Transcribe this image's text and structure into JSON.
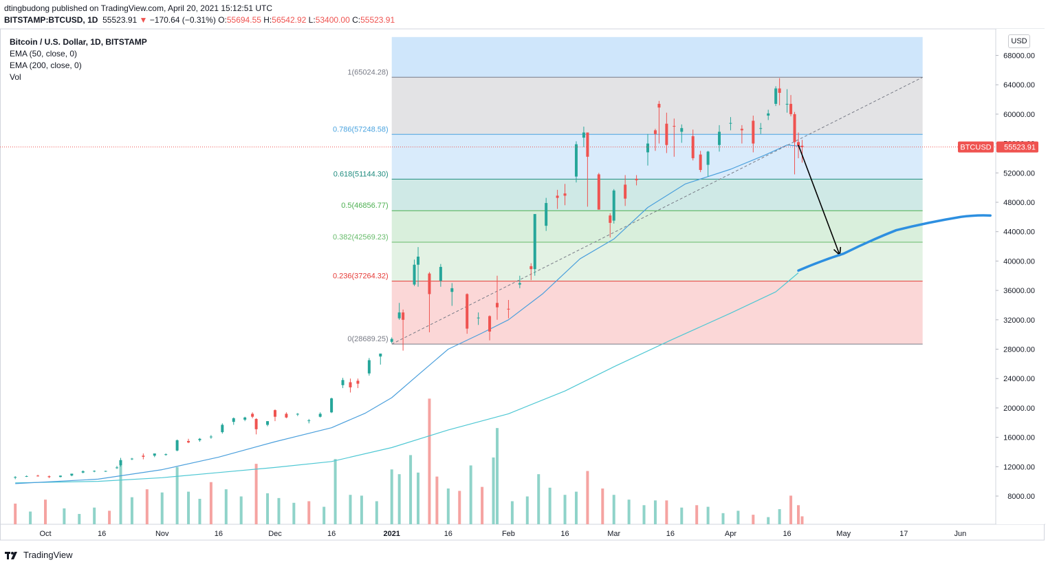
{
  "header": {
    "publisher_line": "dtingbudong published on TradingView.com, April 20, 2021 15:12:51 UTC",
    "symbol": "BITSTAMP:BTCUSD, 1D",
    "last": "55523.91",
    "change": "−170.64 (−0.31%)",
    "open_label": "O:",
    "open": "55694.55",
    "high_label": "H:",
    "high": "56542.92",
    "low_label": "L:",
    "low": "53400.00",
    "close_label": "C:",
    "close": "55523.91"
  },
  "legend": {
    "title": "Bitcoin / U.S. Dollar, 1D, BITSTAMP",
    "ema50": "EMA (50, close, 0)",
    "ema200": "EMA (200, close, 0)",
    "vol": "Vol"
  },
  "currency_button": "USD",
  "footer": {
    "brand": "TradingView"
  },
  "colors": {
    "up": "#26a69a",
    "down": "#ef5350",
    "vol_up": "#8fd3c9",
    "vol_down": "#f5a3a1",
    "ema50": "#4a9fdc",
    "ema200": "#4dc7d3",
    "projection": "#2d8fe0"
  },
  "chart_data": {
    "type": "candlestick",
    "symbol": "BTCUSD",
    "price_tag": {
      "label": "BTCUSD",
      "value": "55523.91"
    },
    "y_ticks": [
      "68000.00",
      "64000.00",
      "60000.00",
      "56000.00",
      "52000.00",
      "48000.00",
      "44000.00",
      "40000.00",
      "36000.00",
      "32000.00",
      "28000.00",
      "24000.00",
      "20000.00",
      "16000.00",
      "12000.00",
      "8000.00"
    ],
    "ylim": [
      6000,
      70500
    ],
    "x_ticks": [
      "Oct",
      "16",
      "Nov",
      "16",
      "Dec",
      "16",
      "2021",
      "16",
      "Feb",
      "16",
      "Mar",
      "16",
      "Apr",
      "16",
      "May",
      "17",
      "Jun"
    ],
    "x_tick_dates": [
      "2020-10-01",
      "2020-10-16",
      "2020-11-01",
      "2020-11-16",
      "2020-12-01",
      "2020-12-16",
      "2021-01-01",
      "2021-01-16",
      "2021-02-01",
      "2021-02-16",
      "2021-03-01",
      "2021-03-16",
      "2021-04-01",
      "2021-04-16",
      "2021-05-01",
      "2021-05-17",
      "2021-06-01"
    ],
    "x_bold": [
      "2021"
    ],
    "fib": {
      "start_date": "2021-01-01",
      "end_date": "2021-05-22",
      "levels": [
        {
          "ratio": "1",
          "price": 65024.28,
          "label": "1(65024.28)",
          "color": "#787b86"
        },
        {
          "ratio": "0.786",
          "price": 57248.58,
          "label": "0.786(57248.58)",
          "color": "#4aa3df"
        },
        {
          "ratio": "0.618",
          "price": 51144.3,
          "label": "0.618(51144.30)",
          "color": "#1e8b7e"
        },
        {
          "ratio": "0.5",
          "price": 46856.77,
          "label": "0.5(46856.77)",
          "color": "#4caf50"
        },
        {
          "ratio": "0.382",
          "price": 42569.23,
          "label": "0.382(42569.23)",
          "color": "#66bb6a"
        },
        {
          "ratio": "0.236",
          "price": 37264.32,
          "label": "0.236(37264.32)",
          "color": "#e53935"
        },
        {
          "ratio": "0",
          "price": 28689.25,
          "label": "0(28689.25)",
          "color": "#787b86"
        }
      ],
      "zones": [
        {
          "from": 65024.28,
          "to": 70500,
          "color": "#cfe6fb"
        },
        {
          "from": 57248.58,
          "to": 65024.28,
          "color": "#e3e3e5"
        },
        {
          "from": 51144.3,
          "to": 57248.58,
          "color": "#d9ebfb"
        },
        {
          "from": 46856.77,
          "to": 51144.3,
          "color": "#cfe9e6"
        },
        {
          "from": 42569.23,
          "to": 46856.77,
          "color": "#d9efdc"
        },
        {
          "from": 37264.32,
          "to": 42569.23,
          "color": "#e3f2e4"
        },
        {
          "from": 28689.25,
          "to": 37264.32,
          "color": "#fbd7d7"
        }
      ]
    },
    "trend_line": {
      "from": [
        "2021-01-01",
        28689.25
      ],
      "to": [
        "2021-05-22",
        65024.28
      ]
    },
    "arrow": {
      "from": [
        "2021-04-19",
        55800
      ],
      "to": [
        "2021-04-30",
        40800
      ]
    },
    "projection_curve": [
      [
        "2021-04-19",
        38700
      ],
      [
        "2021-05-01",
        41000
      ],
      [
        "2021-05-15",
        44200
      ],
      [
        "2021-06-01",
        46000
      ],
      [
        "2021-06-09",
        46200
      ]
    ],
    "ema50": [
      [
        "2020-09-23",
        9700
      ],
      [
        "2020-10-15",
        10300
      ],
      [
        "2020-11-01",
        11600
      ],
      [
        "2020-11-16",
        13300
      ],
      [
        "2020-12-01",
        15400
      ],
      [
        "2020-12-16",
        17300
      ],
      [
        "2020-12-25",
        19300
      ],
      [
        "2021-01-01",
        21400
      ],
      [
        "2021-01-08",
        24500
      ],
      [
        "2021-01-16",
        28000
      ],
      [
        "2021-01-25",
        30200
      ],
      [
        "2021-02-01",
        32000
      ],
      [
        "2021-02-10",
        35500
      ],
      [
        "2021-02-20",
        40300
      ],
      [
        "2021-03-01",
        43000
      ],
      [
        "2021-03-10",
        47300
      ],
      [
        "2021-03-20",
        50500
      ],
      [
        "2021-04-01",
        52500
      ],
      [
        "2021-04-10",
        54400
      ],
      [
        "2021-04-16",
        55800
      ],
      [
        "2021-04-20",
        55600
      ]
    ],
    "ema200": [
      [
        "2020-09-23",
        9800
      ],
      [
        "2020-10-15",
        10000
      ],
      [
        "2020-11-01",
        10500
      ],
      [
        "2020-11-16",
        11200
      ],
      [
        "2020-12-01",
        11900
      ],
      [
        "2020-12-16",
        12700
      ],
      [
        "2021-01-01",
        14600
      ],
      [
        "2021-01-16",
        17000
      ],
      [
        "2021-02-01",
        19200
      ],
      [
        "2021-02-16",
        22300
      ],
      [
        "2021-03-01",
        25600
      ],
      [
        "2021-03-16",
        29200
      ],
      [
        "2021-04-01",
        32900
      ],
      [
        "2021-04-13",
        35800
      ],
      [
        "2021-04-19",
        38400
      ]
    ],
    "candles_ohlc_columns": [
      "date",
      "open",
      "high",
      "low",
      "close"
    ],
    "candles": [
      [
        "2020-09-23",
        10500,
        10700,
        10300,
        10600
      ],
      [
        "2020-09-26",
        10700,
        10800,
        10600,
        10720
      ],
      [
        "2020-09-29",
        10780,
        10900,
        10650,
        10750
      ],
      [
        "2020-10-02",
        10700,
        10800,
        10450,
        10580
      ],
      [
        "2020-10-05",
        10600,
        10800,
        10550,
        10780
      ],
      [
        "2020-10-08",
        10800,
        11000,
        10700,
        11050
      ],
      [
        "2020-10-11",
        11200,
        11500,
        11100,
        11380
      ],
      [
        "2020-10-14",
        11400,
        11500,
        11250,
        11430
      ],
      [
        "2020-10-17",
        11370,
        11450,
        11300,
        11420
      ],
      [
        "2020-10-20",
        11800,
        12100,
        11700,
        11900
      ],
      [
        "2020-10-21",
        12200,
        13200,
        12000,
        12900
      ],
      [
        "2020-10-24",
        13050,
        13200,
        12900,
        13100
      ],
      [
        "2020-10-27",
        13500,
        13800,
        13000,
        13350
      ],
      [
        "2020-10-30",
        13500,
        13700,
        13300,
        13800
      ],
      [
        "2020-11-02",
        13600,
        13800,
        13500,
        13700
      ],
      [
        "2020-11-05",
        14200,
        15700,
        14100,
        15600
      ],
      [
        "2020-11-08",
        15500,
        15800,
        15200,
        15300
      ],
      [
        "2020-11-11",
        15600,
        15900,
        15400,
        15800
      ],
      [
        "2020-11-14",
        16000,
        16300,
        15800,
        16100
      ],
      [
        "2020-11-17",
        16700,
        17900,
        16500,
        17700
      ],
      [
        "2020-11-20",
        18100,
        18700,
        17700,
        18600
      ],
      [
        "2020-11-23",
        18400,
        18800,
        18200,
        18700
      ],
      [
        "2020-11-25",
        19200,
        19400,
        18600,
        18800
      ],
      [
        "2020-11-26",
        18500,
        18600,
        16400,
        17100
      ],
      [
        "2020-11-29",
        17700,
        18200,
        17500,
        18200
      ],
      [
        "2020-12-01",
        19700,
        19800,
        18200,
        18800
      ],
      [
        "2020-12-04",
        19200,
        19400,
        18600,
        18700
      ],
      [
        "2020-12-07",
        19100,
        19300,
        18900,
        19200
      ],
      [
        "2020-12-10",
        18300,
        18500,
        17900,
        18300
      ],
      [
        "2020-12-13",
        18800,
        19400,
        18700,
        19200
      ],
      [
        "2020-12-16",
        19400,
        21400,
        19300,
        21300
      ],
      [
        "2020-12-19",
        23100,
        24100,
        22700,
        23800
      ],
      [
        "2020-12-21",
        23500,
        24000,
        22100,
        22800
      ],
      [
        "2020-12-23",
        23700,
        24000,
        22700,
        23300
      ],
      [
        "2020-12-26",
        24700,
        26800,
        24400,
        26500
      ],
      [
        "2020-12-29",
        27000,
        27400,
        25900,
        27400
      ],
      [
        "2021-01-01",
        29000,
        29600,
        28800,
        29400
      ],
      [
        "2021-01-03",
        32200,
        34300,
        32000,
        33000
      ],
      [
        "2021-01-04",
        33000,
        33400,
        27800,
        32000
      ],
      [
        "2021-01-07",
        36800,
        40200,
        36600,
        39500
      ],
      [
        "2021-01-08",
        39500,
        41900,
        36500,
        40600
      ],
      [
        "2021-01-11",
        38300,
        38500,
        30300,
        35500
      ],
      [
        "2021-01-14",
        37300,
        39600,
        36500,
        39200
      ],
      [
        "2021-01-17",
        35800,
        37000,
        33900,
        36300
      ],
      [
        "2021-01-21",
        35500,
        35600,
        30100,
        30800
      ],
      [
        "2021-01-24",
        32200,
        33000,
        31300,
        32300
      ],
      [
        "2021-01-27",
        32500,
        32600,
        29200,
        30400
      ],
      [
        "2021-01-29",
        34300,
        38000,
        32000,
        33700
      ],
      [
        "2021-02-01",
        33500,
        34700,
        32200,
        33400
      ],
      [
        "2021-02-04",
        36800,
        38000,
        36300,
        37000
      ],
      [
        "2021-02-07",
        39300,
        39700,
        37400,
        38900
      ],
      [
        "2021-02-08",
        38900,
        46200,
        38000,
        46400
      ],
      [
        "2021-02-11",
        44800,
        48600,
        44100,
        47900
      ],
      [
        "2021-02-14",
        48900,
        49700,
        47100,
        48600
      ],
      [
        "2021-02-16",
        49200,
        50500,
        47600,
        48900
      ],
      [
        "2021-02-19",
        51500,
        56300,
        50700,
        55900
      ],
      [
        "2021-02-21",
        56800,
        58300,
        55500,
        57500
      ],
      [
        "2021-02-22",
        57500,
        57500,
        47400,
        54200
      ],
      [
        "2021-02-25",
        51800,
        52000,
        47000,
        47000
      ],
      [
        "2021-02-28",
        46200,
        46500,
        43200,
        45200
      ],
      [
        "2021-03-01",
        45500,
        49800,
        45100,
        49600
      ],
      [
        "2021-03-04",
        50400,
        51700,
        47500,
        48500
      ],
      [
        "2021-03-07",
        51200,
        51700,
        50300,
        51000
      ],
      [
        "2021-03-10",
        54800,
        57300,
        53000,
        56000
      ],
      [
        "2021-03-12",
        57800,
        58000,
        55000,
        57300
      ],
      [
        "2021-03-13",
        61400,
        61800,
        56000,
        60900
      ],
      [
        "2021-03-15",
        58700,
        60200,
        54700,
        55800
      ],
      [
        "2021-03-17",
        58400,
        59400,
        54200,
        58300
      ],
      [
        "2021-03-19",
        57600,
        58600,
        56100,
        58100
      ],
      [
        "2021-03-22",
        57000,
        57900,
        53700,
        54000
      ],
      [
        "2021-03-24",
        54500,
        55000,
        52100,
        52400
      ],
      [
        "2021-03-26",
        53100,
        55000,
        51500,
        54900
      ],
      [
        "2021-03-29",
        55800,
        58500,
        54900,
        57600
      ],
      [
        "2021-04-01",
        58800,
        59600,
        57800,
        58800
      ],
      [
        "2021-04-04",
        58000,
        58500,
        56000,
        57800
      ],
      [
        "2021-04-07",
        59100,
        59800,
        54800,
        56000
      ],
      [
        "2021-04-09",
        58000,
        58800,
        57300,
        58100
      ],
      [
        "2021-04-11",
        59800,
        60600,
        59200,
        60100
      ],
      [
        "2021-04-13",
        61400,
        63800,
        61100,
        63500
      ],
      [
        "2021-04-14",
        63500,
        64900,
        61200,
        62900
      ],
      [
        "2021-04-16",
        61300,
        63400,
        60200,
        61400
      ],
      [
        "2021-04-17",
        61400,
        62600,
        59700,
        60000
      ],
      [
        "2021-04-18",
        60000,
        60300,
        51800,
        56200
      ],
      [
        "2021-04-19",
        56200,
        57500,
        54000,
        55700
      ],
      [
        "2021-04-20",
        55700,
        56500,
        53400,
        55500
      ]
    ],
    "volume_columns": [
      "date",
      "volume_k",
      "direction"
    ],
    "volume": [
      [
        "2020-09-23",
        7800,
        "down"
      ],
      [
        "2020-09-27",
        6800,
        "up"
      ],
      [
        "2020-10-01",
        8300,
        "down"
      ],
      [
        "2020-10-06",
        7200,
        "up"
      ],
      [
        "2020-10-10",
        6500,
        "up"
      ],
      [
        "2020-10-14",
        7300,
        "up"
      ],
      [
        "2020-10-18",
        6900,
        "down"
      ],
      [
        "2020-10-21",
        12800,
        "up"
      ],
      [
        "2020-10-24",
        8600,
        "up"
      ],
      [
        "2020-10-28",
        9600,
        "down"
      ],
      [
        "2020-11-01",
        9200,
        "up"
      ],
      [
        "2020-11-05",
        12400,
        "up"
      ],
      [
        "2020-11-08",
        9300,
        "up"
      ],
      [
        "2020-11-11",
        8400,
        "up"
      ],
      [
        "2020-11-14",
        10500,
        "down"
      ],
      [
        "2020-11-18",
        9600,
        "up"
      ],
      [
        "2020-11-22",
        8700,
        "up"
      ],
      [
        "2020-11-26",
        12800,
        "down"
      ],
      [
        "2020-11-29",
        9100,
        "up"
      ],
      [
        "2020-12-02",
        8500,
        "up"
      ],
      [
        "2020-12-06",
        7900,
        "up"
      ],
      [
        "2020-12-10",
        8100,
        "down"
      ],
      [
        "2020-12-14",
        7400,
        "up"
      ],
      [
        "2020-12-17",
        13400,
        "up"
      ],
      [
        "2020-12-21",
        8900,
        "up"
      ],
      [
        "2020-12-24",
        8800,
        "up"
      ],
      [
        "2020-12-28",
        8100,
        "up"
      ],
      [
        "2021-01-01",
        12100,
        "up"
      ],
      [
        "2021-01-03",
        11500,
        "up"
      ],
      [
        "2021-01-06",
        13900,
        "up"
      ],
      [
        "2021-01-08",
        11700,
        "up"
      ],
      [
        "2021-01-11",
        21000,
        "down"
      ],
      [
        "2021-01-13",
        11200,
        "down"
      ],
      [
        "2021-01-16",
        9700,
        "up"
      ],
      [
        "2021-01-19",
        9400,
        "down"
      ],
      [
        "2021-01-22",
        12600,
        "up"
      ],
      [
        "2021-01-25",
        9900,
        "down"
      ],
      [
        "2021-01-28",
        13600,
        "up"
      ],
      [
        "2021-01-29",
        17300,
        "up"
      ],
      [
        "2021-02-02",
        8100,
        "up"
      ],
      [
        "2021-02-06",
        8700,
        "up"
      ],
      [
        "2021-02-09",
        11500,
        "up"
      ],
      [
        "2021-02-12",
        9800,
        "up"
      ],
      [
        "2021-02-16",
        8900,
        "up"
      ],
      [
        "2021-02-19",
        9300,
        "up"
      ],
      [
        "2021-02-22",
        11900,
        "down"
      ],
      [
        "2021-02-26",
        9700,
        "down"
      ],
      [
        "2021-03-01",
        8900,
        "up"
      ],
      [
        "2021-03-05",
        8300,
        "up"
      ],
      [
        "2021-03-09",
        7600,
        "up"
      ],
      [
        "2021-03-12",
        8200,
        "up"
      ],
      [
        "2021-03-15",
        8200,
        "down"
      ],
      [
        "2021-03-19",
        7300,
        "up"
      ],
      [
        "2021-03-23",
        7600,
        "down"
      ],
      [
        "2021-03-26",
        7400,
        "up"
      ],
      [
        "2021-03-30",
        6600,
        "up"
      ],
      [
        "2021-04-03",
        6900,
        "up"
      ],
      [
        "2021-04-07",
        6400,
        "down"
      ],
      [
        "2021-04-11",
        6100,
        "up"
      ],
      [
        "2021-04-14",
        7100,
        "up"
      ],
      [
        "2021-04-17",
        8800,
        "down"
      ],
      [
        "2021-04-19",
        7600,
        "down"
      ],
      [
        "2021-04-20",
        6200,
        "down"
      ]
    ]
  }
}
